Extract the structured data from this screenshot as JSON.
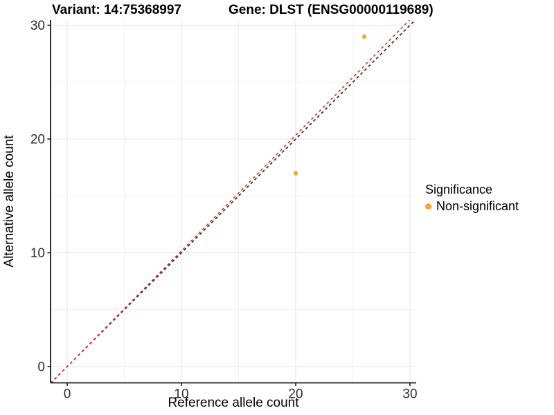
{
  "chart_data": {
    "type": "scatter",
    "titles": {
      "left": "Variant: 14:75368997",
      "right": "Gene: DLST (ENSG00000119689)"
    },
    "xlabel": "Reference allele count",
    "ylabel": "Alternative allele count",
    "xlim": [
      -1.45,
      30.45
    ],
    "ylim": [
      -1.45,
      30.45
    ],
    "x_ticks": [
      0,
      10,
      20,
      30
    ],
    "y_ticks": [
      0,
      10,
      20,
      30
    ],
    "minor_tick_step": 5,
    "grid": true,
    "series": [
      {
        "name": "Non-significant",
        "color": "#FAA43A",
        "points": [
          {
            "x": 20,
            "y": 17
          },
          {
            "x": 26,
            "y": 29
          }
        ]
      }
    ],
    "lines": [
      {
        "name": "identity-line",
        "slope": 1.0,
        "intercept": 0,
        "color": "#1a1a1a",
        "dash": "4 4"
      },
      {
        "name": "fit-line",
        "slope": 1.0167,
        "intercept": 0,
        "color": "#EA2A21",
        "dash": "4 4"
      }
    ],
    "legend": {
      "title": "Significance",
      "position": "right",
      "items": [
        {
          "label": "Non-significant",
          "color": "#FAA43A"
        }
      ]
    },
    "colors": {
      "grid_major": "#E6E6E6",
      "grid_minor": "#F1F1F1",
      "axis_line": "#1a1a1a",
      "tick_label": "#2e2e2e"
    }
  }
}
